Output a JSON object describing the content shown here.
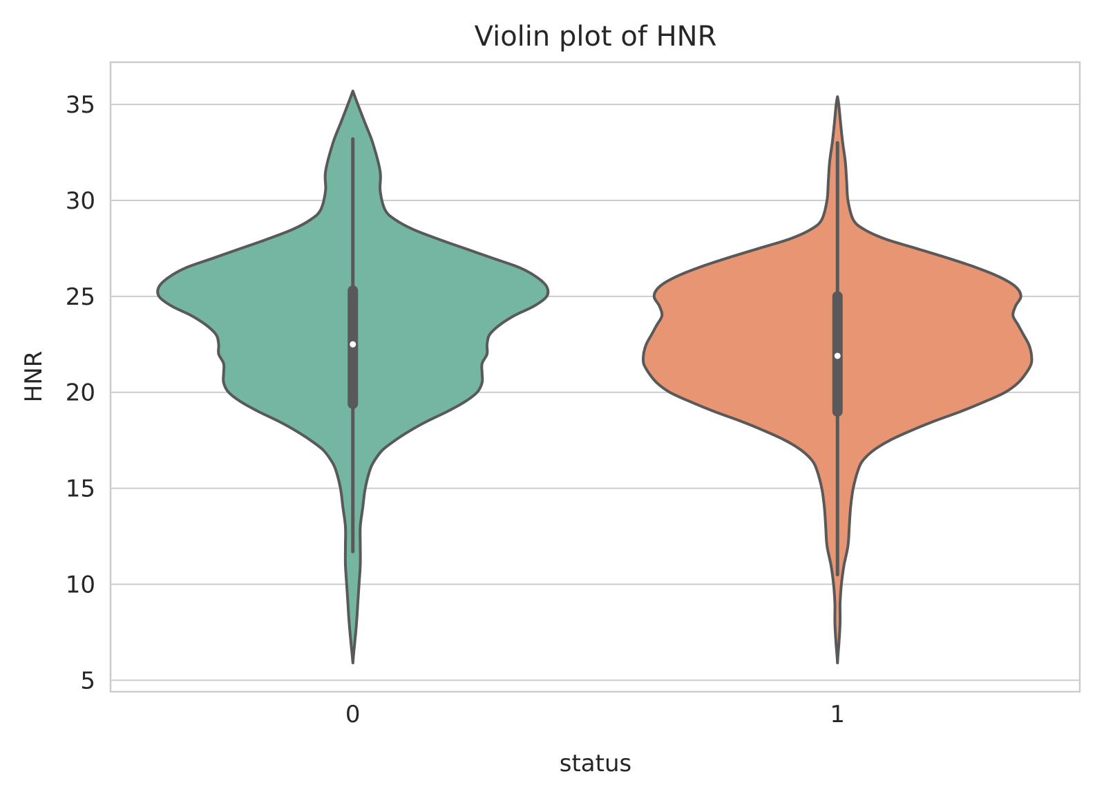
{
  "chart_data": {
    "type": "violin",
    "title": "Violin plot of HNR",
    "xlabel": "status",
    "ylabel": "HNR",
    "categories": [
      "0",
      "1"
    ],
    "ylim": [
      4.4,
      37.2
    ],
    "yticks": [
      5,
      10,
      15,
      20,
      25,
      30,
      35
    ],
    "grid": "horizontal",
    "colors": {
      "0": "#74b6a2",
      "1": "#e89574",
      "outline": "#595959",
      "median": "#ffffff",
      "grid": "#cccccc"
    },
    "violins": [
      {
        "category": "0",
        "median": 22.5,
        "q1": 19.4,
        "q3": 25.3,
        "whisker_low": 11.7,
        "whisker_high": 33.2,
        "min": 5.9,
        "max": 35.7,
        "density_max_halfwidth_frac": 0.79,
        "profile": [
          [
            35.7,
            0.0
          ],
          [
            35.0,
            0.02
          ],
          [
            34.0,
            0.05
          ],
          [
            33.0,
            0.08
          ],
          [
            31.5,
            0.11
          ],
          [
            30.5,
            0.11
          ],
          [
            29.5,
            0.13
          ],
          [
            29.0,
            0.17
          ],
          [
            28.5,
            0.24
          ],
          [
            28.0,
            0.34
          ],
          [
            27.5,
            0.45
          ],
          [
            27.0,
            0.56
          ],
          [
            26.5,
            0.67
          ],
          [
            26.0,
            0.74
          ],
          [
            25.5,
            0.78
          ],
          [
            25.0,
            0.78
          ],
          [
            24.5,
            0.73
          ],
          [
            24.0,
            0.65
          ],
          [
            23.5,
            0.59
          ],
          [
            23.0,
            0.55
          ],
          [
            22.5,
            0.54
          ],
          [
            22.0,
            0.54
          ],
          [
            21.5,
            0.52
          ],
          [
            21.0,
            0.52
          ],
          [
            20.5,
            0.52
          ],
          [
            20.0,
            0.5
          ],
          [
            19.5,
            0.45
          ],
          [
            19.0,
            0.38
          ],
          [
            18.5,
            0.3
          ],
          [
            18.0,
            0.23
          ],
          [
            17.5,
            0.17
          ],
          [
            17.0,
            0.12
          ],
          [
            16.5,
            0.09
          ],
          [
            16.0,
            0.07
          ],
          [
            15.0,
            0.05
          ],
          [
            14.0,
            0.04
          ],
          [
            13.0,
            0.03
          ],
          [
            12.0,
            0.03
          ],
          [
            11.0,
            0.03
          ],
          [
            10.0,
            0.025
          ],
          [
            9.0,
            0.02
          ],
          [
            8.0,
            0.015
          ],
          [
            7.0,
            0.008
          ],
          [
            6.5,
            0.004
          ],
          [
            5.9,
            0.0
          ]
        ]
      },
      {
        "category": "1",
        "median": 21.9,
        "q1": 19.0,
        "q3": 25.0,
        "whisker_low": 10.5,
        "whisker_high": 33.0,
        "min": 5.9,
        "max": 35.4,
        "density_max_halfwidth_frac": 0.74,
        "profile": [
          [
            35.4,
            0.0
          ],
          [
            35.0,
            0.005
          ],
          [
            34.0,
            0.012
          ],
          [
            33.0,
            0.02
          ],
          [
            32.0,
            0.03
          ],
          [
            31.0,
            0.035
          ],
          [
            30.0,
            0.04
          ],
          [
            29.0,
            0.06
          ],
          [
            28.5,
            0.1
          ],
          [
            28.0,
            0.18
          ],
          [
            27.5,
            0.3
          ],
          [
            27.0,
            0.42
          ],
          [
            26.5,
            0.53
          ],
          [
            26.0,
            0.62
          ],
          [
            25.5,
            0.68
          ],
          [
            25.0,
            0.7
          ],
          [
            24.5,
            0.68
          ],
          [
            24.0,
            0.67
          ],
          [
            23.5,
            0.69
          ],
          [
            23.0,
            0.71
          ],
          [
            22.5,
            0.73
          ],
          [
            22.0,
            0.74
          ],
          [
            21.5,
            0.74
          ],
          [
            21.0,
            0.72
          ],
          [
            20.5,
            0.69
          ],
          [
            20.0,
            0.64
          ],
          [
            19.5,
            0.56
          ],
          [
            19.0,
            0.47
          ],
          [
            18.5,
            0.37
          ],
          [
            18.0,
            0.28
          ],
          [
            17.5,
            0.2
          ],
          [
            17.0,
            0.14
          ],
          [
            16.5,
            0.1
          ],
          [
            16.0,
            0.08
          ],
          [
            15.0,
            0.06
          ],
          [
            14.0,
            0.05
          ],
          [
            13.0,
            0.045
          ],
          [
            12.0,
            0.04
          ],
          [
            11.0,
            0.025
          ],
          [
            10.0,
            0.015
          ],
          [
            9.0,
            0.01
          ],
          [
            8.0,
            0.01
          ],
          [
            7.0,
            0.006
          ],
          [
            6.5,
            0.003
          ],
          [
            5.9,
            0.0
          ]
        ]
      }
    ]
  }
}
